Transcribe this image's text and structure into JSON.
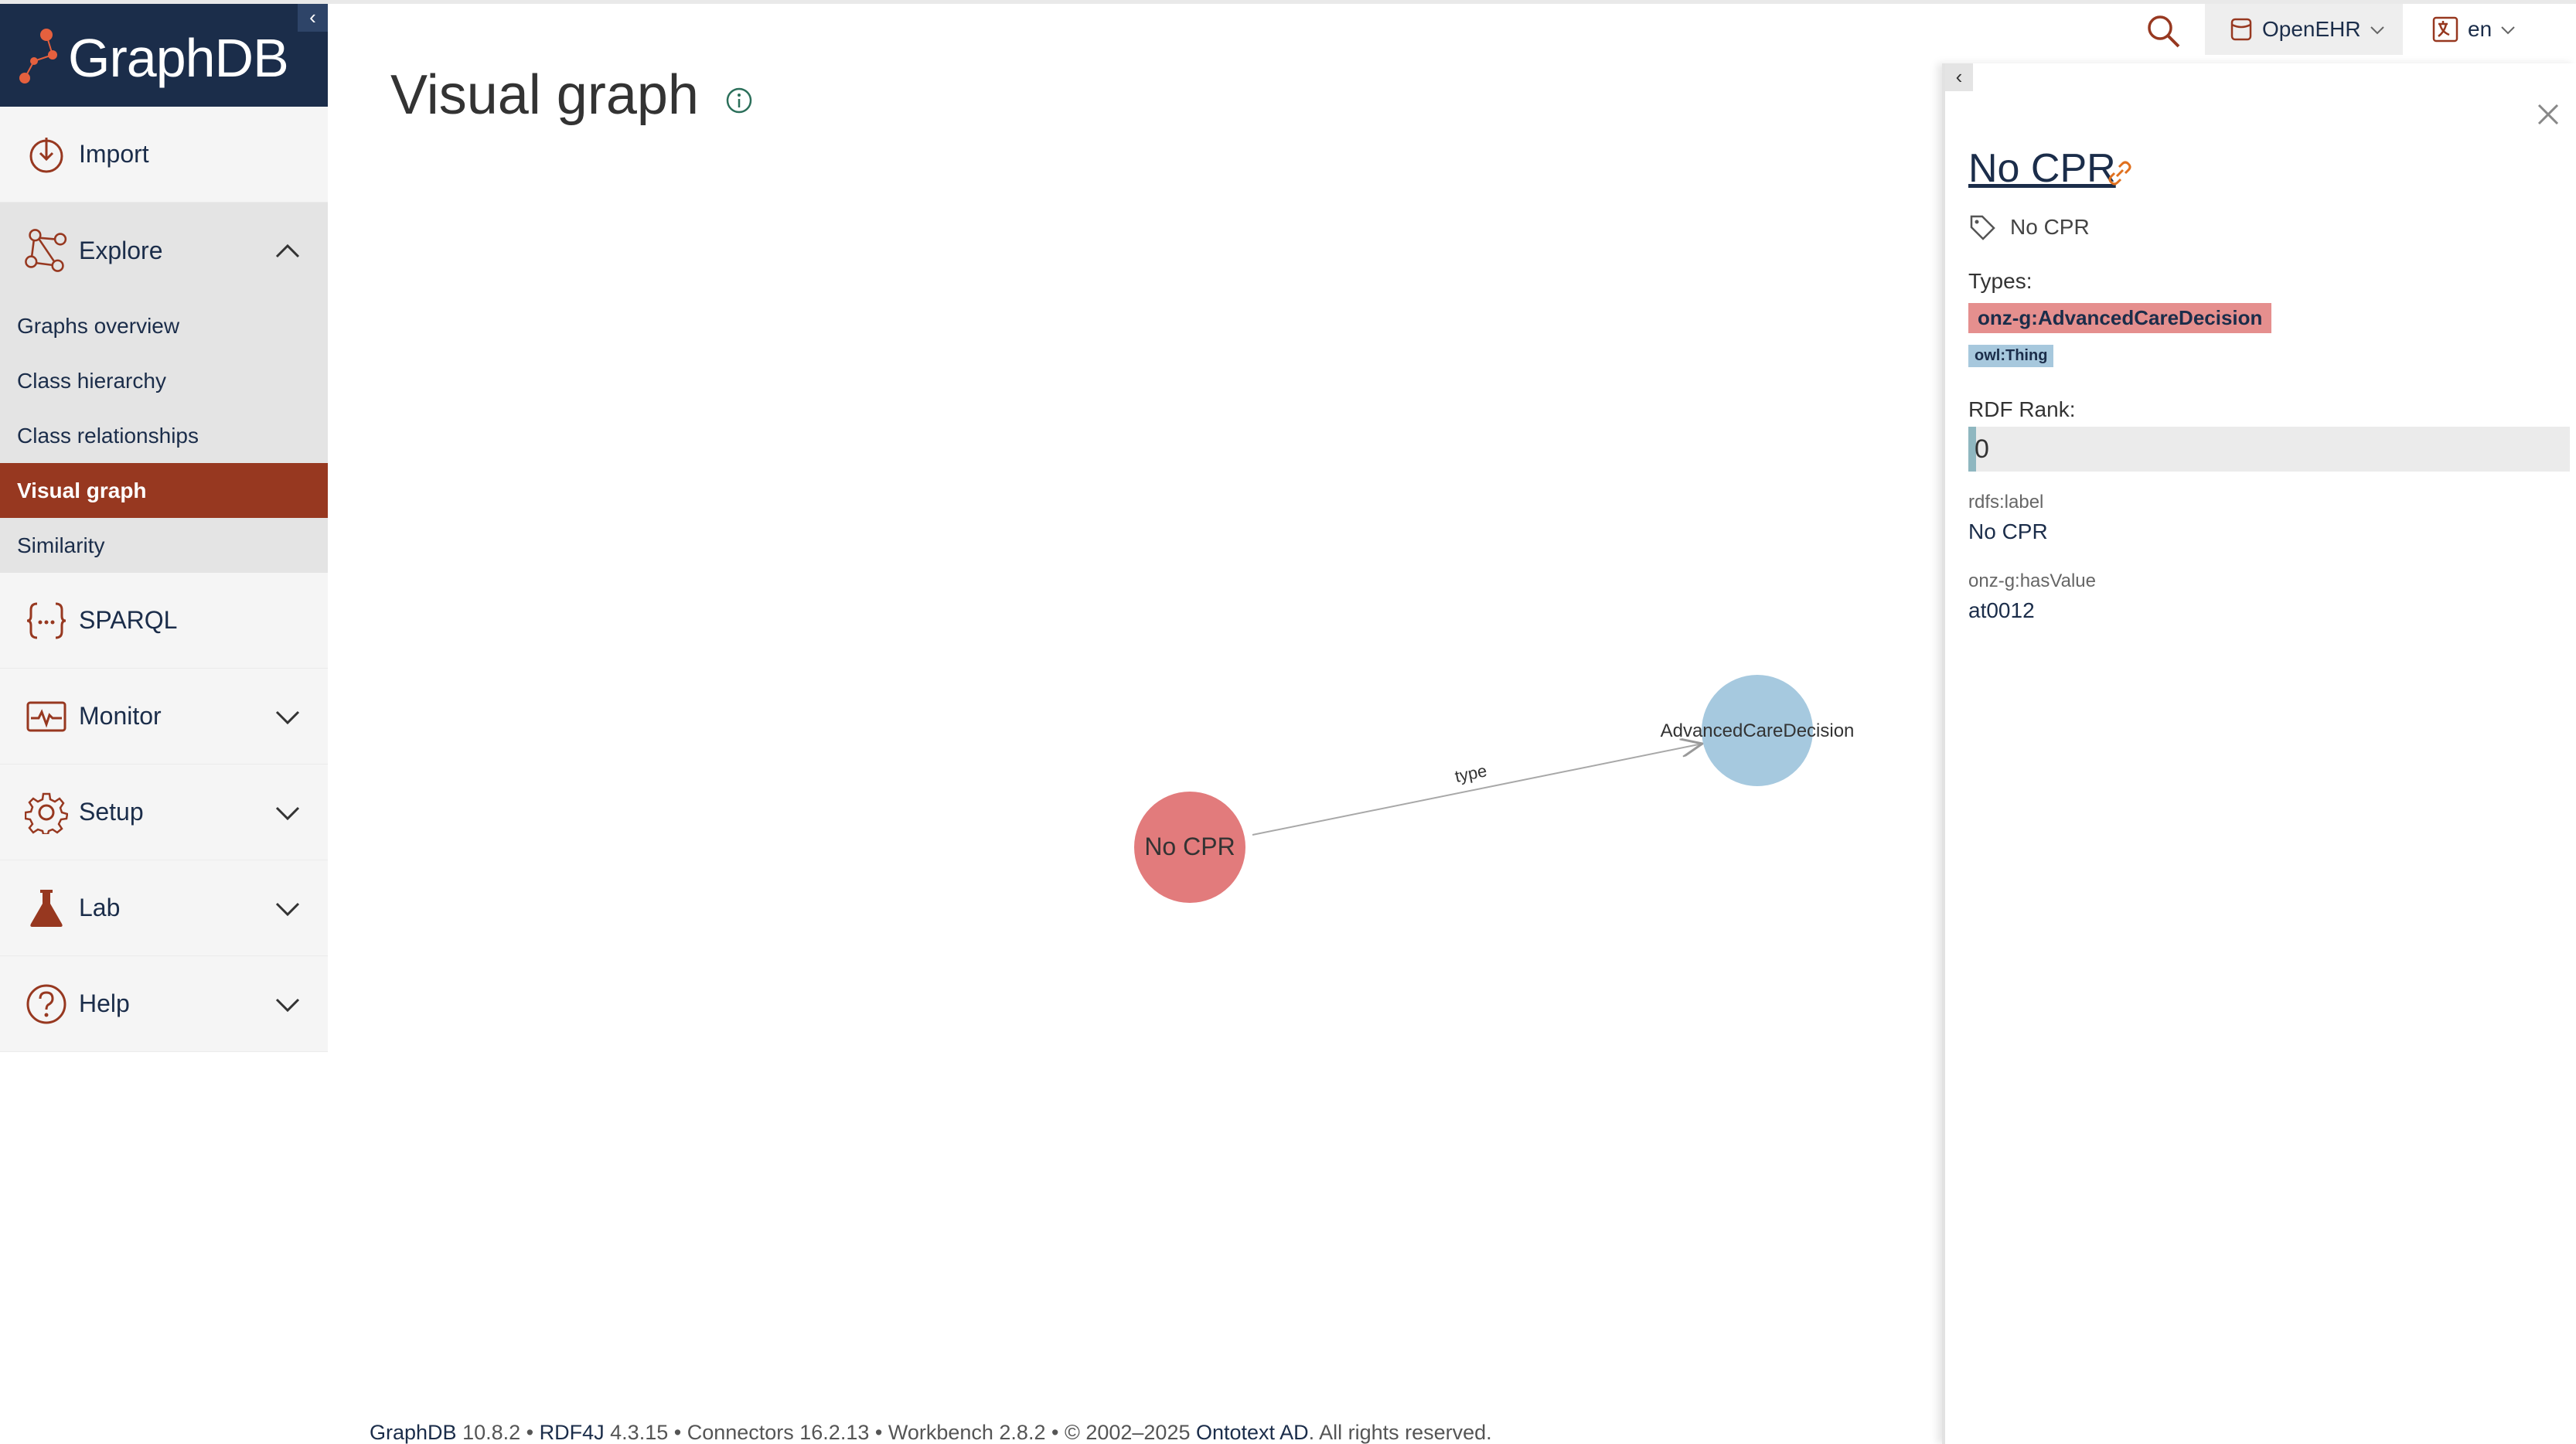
{
  "app": {
    "brand_name": "GraphDB",
    "collapse_label": "‹"
  },
  "sidebar": {
    "items": [
      {
        "label": "Import",
        "icon": "import-icon"
      },
      {
        "label": "Explore",
        "icon": "explore-icon",
        "expanded": true,
        "children": [
          "Graphs overview",
          "Class hierarchy",
          "Class relationships",
          "Visual graph",
          "Similarity"
        ],
        "active_child": "Visual graph"
      },
      {
        "label": "SPARQL",
        "icon": "sparql-icon"
      },
      {
        "label": "Monitor",
        "icon": "monitor-icon"
      },
      {
        "label": "Setup",
        "icon": "setup-icon"
      },
      {
        "label": "Lab",
        "icon": "lab-icon"
      },
      {
        "label": "Help",
        "icon": "help-icon"
      }
    ]
  },
  "main": {
    "page_title": "Visual graph"
  },
  "topbar": {
    "repository": "OpenEHR",
    "language": "en"
  },
  "graph": {
    "nodes": [
      {
        "label": "No CPR",
        "color": "#e27b7c"
      },
      {
        "label": "AdvancedCareDecision",
        "color": "#a6c9df"
      }
    ],
    "edges": [
      {
        "label": "type",
        "from": "No CPR",
        "to": "AdvancedCareDecision"
      }
    ]
  },
  "panel": {
    "collapse_label": "‹",
    "resource_title": "No CPR",
    "tag_label": "No CPR",
    "types_heading": "Types:",
    "types": [
      "onz-g:AdvancedCareDecision",
      "owl:Thing"
    ],
    "rank_heading": "RDF Rank:",
    "rank_value": "0",
    "rank_fraction": 0.0,
    "properties": [
      {
        "name": "rdfs:label",
        "value": "No CPR"
      },
      {
        "name": "onz-g:hasValue",
        "value": "at0012"
      }
    ]
  },
  "footer": {
    "product": "GraphDB",
    "product_version": "10.8.2",
    "rdf4j": "RDF4J",
    "rdf4j_version": "4.3.15",
    "connectors": "Connectors 16.2.13",
    "workbench": "Workbench 2.8.2",
    "copyright": "© 2002–2025",
    "company": "Ontotext AD",
    "rights": ". All rights reserved.",
    "sep": " • "
  },
  "colors": {
    "brand_navy": "#1b2d4a",
    "accent": "#973820",
    "node_red": "#e27b7c",
    "node_blue": "#a6c9df"
  }
}
